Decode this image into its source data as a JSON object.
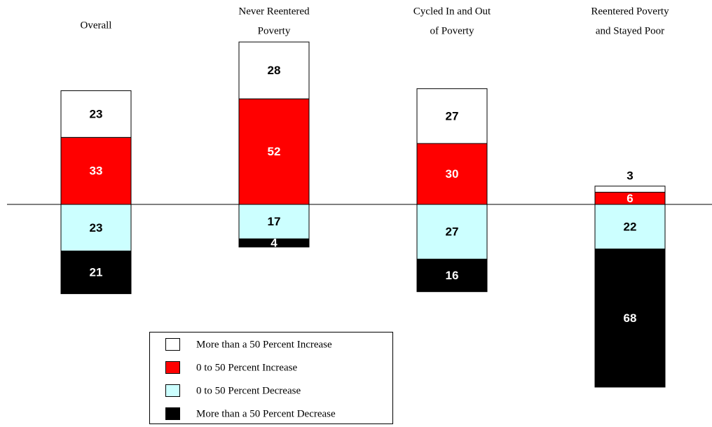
{
  "chart_data": {
    "type": "diverging-stacked-bar",
    "categories": [
      [
        "Overall"
      ],
      [
        "Never Reentered",
        "Poverty"
      ],
      [
        "Cycled In and Out",
        "of Poverty"
      ],
      [
        "Reentered Poverty",
        "and Stayed Poor"
      ]
    ],
    "series": [
      {
        "name": "More than a 50 Percent Increase",
        "color": "#ffffff",
        "values": [
          23,
          28,
          27,
          3
        ]
      },
      {
        "name": "0 to 50 Percent Increase",
        "color": "#ff0000",
        "values": [
          33,
          52,
          30,
          6
        ]
      },
      {
        "name": "0 to 50 Percent Decrease",
        "color": "#ccffff",
        "values": [
          -23,
          -17,
          -27,
          -22
        ],
        "value_labels": [
          "23",
          "17",
          "27",
          "22"
        ]
      },
      {
        "name": "More than a 50 Percent Decrease",
        "color": "#000000",
        "values": [
          -21,
          -4,
          -16,
          -68
        ],
        "value_labels": [
          "21",
          "4",
          "16",
          "68"
        ]
      }
    ],
    "ylim": [
      -100,
      80
    ]
  }
}
